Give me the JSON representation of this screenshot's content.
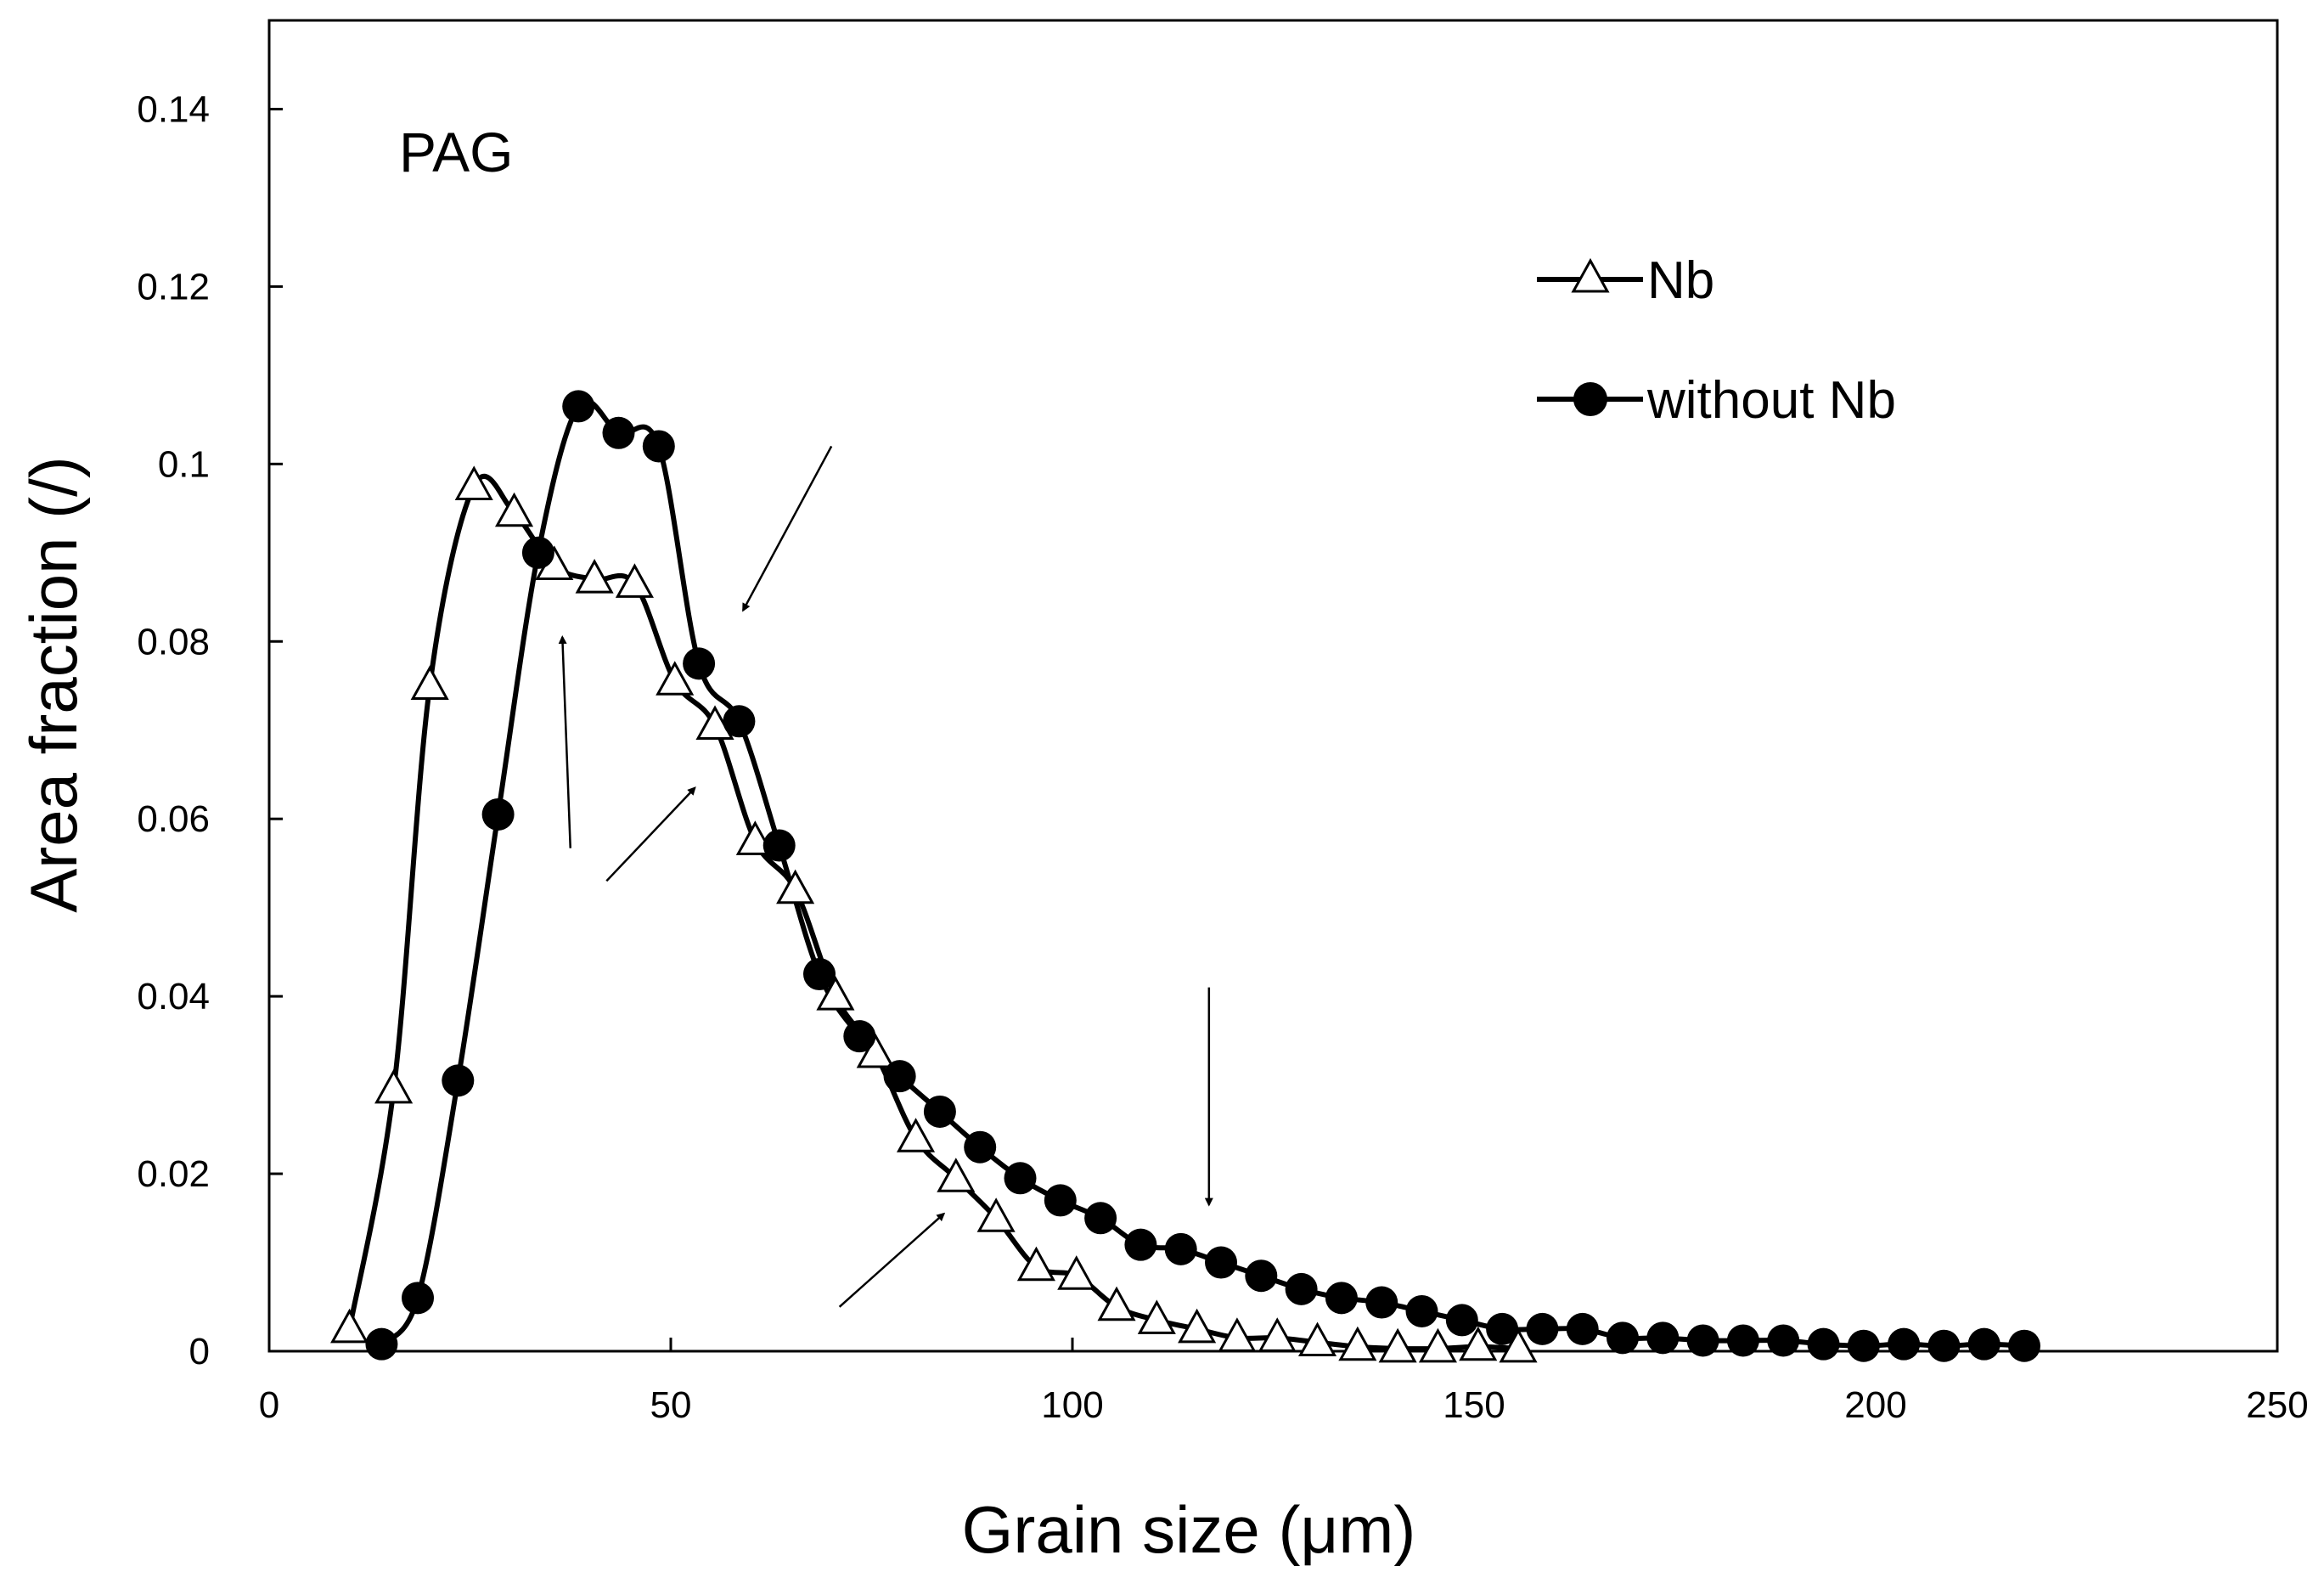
{
  "chart_data": {
    "type": "line",
    "xlabel": "Grain size (μm)",
    "ylabel": "Area fraction (/)",
    "annotation": "PAG",
    "xlim": [
      0,
      250
    ],
    "ylim": [
      0,
      0.15
    ],
    "xticks": [
      "0",
      "50",
      "100",
      "150",
      "200",
      "250"
    ],
    "yticks": [
      "0",
      "0.02",
      "0.04",
      "0.06",
      "0.08",
      "0.1",
      "0.12",
      "0.14"
    ],
    "grid": false,
    "legend_position": "top-right",
    "series": [
      {
        "name": "Nb",
        "marker": "open-triangle",
        "color": "#000000",
        "x": [
          10,
          15.5,
          20,
          25.5,
          30.5,
          35.5,
          40.5,
          45.5,
          50.5,
          55.5,
          60.5,
          65.5,
          70.5,
          75.5,
          80.5,
          85.5,
          90.5,
          95.5,
          100.5,
          105.5,
          110.5,
          115.5,
          120.5,
          125.5,
          130.5,
          135.5,
          140.5,
          145.5,
          150.5,
          155.5
        ],
        "y": [
          0.0025,
          0.0295,
          0.075,
          0.0975,
          0.0945,
          0.0885,
          0.087,
          0.0865,
          0.0755,
          0.0705,
          0.0575,
          0.052,
          0.04,
          0.0335,
          0.024,
          0.0195,
          0.015,
          0.0095,
          0.0085,
          0.005,
          0.0035,
          0.0025,
          0.0015,
          0.0015,
          0.001,
          0.0005,
          0.0003,
          0.0003,
          0.0005,
          0.0003
        ]
      },
      {
        "name": "without Nb",
        "marker": "filled-circle",
        "color": "#000000",
        "x": [
          14,
          18.5,
          23.5,
          28.5,
          33.5,
          38.5,
          43.5,
          48.5,
          53.5,
          58.5,
          63.5,
          68.5,
          73.5,
          78.5,
          83.5,
          88.5,
          93.5,
          98.5,
          103.5,
          108.5,
          113.5,
          118.5,
          123.5,
          128.5,
          133.5,
          138.5,
          143.5,
          148.5,
          153.5,
          158.5,
          163.5,
          168.5,
          173.5,
          178.5,
          183.5,
          188.5,
          193.5,
          198.5,
          203.5,
          208.5,
          213.5,
          218.5
        ],
        "y": [
          0.0008,
          0.006,
          0.0305,
          0.0605,
          0.09,
          0.1065,
          0.1035,
          0.102,
          0.0775,
          0.071,
          0.057,
          0.0425,
          0.0355,
          0.031,
          0.027,
          0.023,
          0.0195,
          0.017,
          0.015,
          0.012,
          0.0115,
          0.01,
          0.0085,
          0.007,
          0.006,
          0.0055,
          0.0045,
          0.0035,
          0.0025,
          0.0025,
          0.0025,
          0.0015,
          0.0015,
          0.0012,
          0.0012,
          0.0012,
          0.0008,
          0.0006,
          0.0008,
          0.0006,
          0.0008,
          0.0006
        ]
      }
    ],
    "arrows": [
      {
        "from": [
          37.5,
          0.0567
        ],
        "to": [
          36.5,
          0.0805
        ]
      },
      {
        "from": [
          42,
          0.053
        ],
        "to": [
          53,
          0.0635
        ]
      },
      {
        "from": [
          70,
          0.102
        ],
        "to": [
          59,
          0.0835
        ]
      },
      {
        "from": [
          71,
          0.005
        ],
        "to": [
          84,
          0.0155
        ]
      },
      {
        "from": [
          117,
          0.041
        ],
        "to": [
          117,
          0.0165
        ]
      }
    ]
  }
}
